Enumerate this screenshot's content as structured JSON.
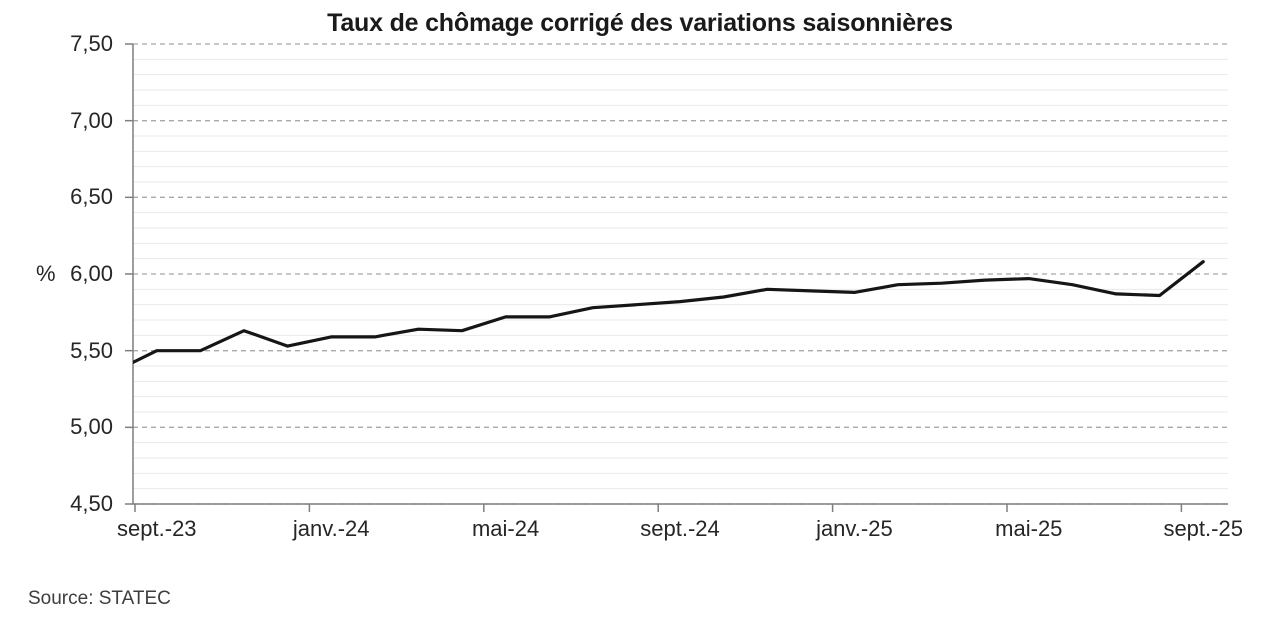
{
  "title": "Taux de chômage corrigé des variations saisonnières",
  "source": "Source: STATEC",
  "chart_data": {
    "type": "line",
    "title": "Taux de chômage corrigé des variations saisonnières",
    "xlabel": "",
    "ylabel": "%",
    "x": [
      "sept.-23",
      "oct.-23",
      "nov.-23",
      "déc.-23",
      "janv.-24",
      "févr.-24",
      "mars-24",
      "avr.-24",
      "mai-24",
      "juin-24",
      "juil.-24",
      "août-24",
      "sept.-24",
      "oct.-24",
      "nov.-24",
      "déc.-24",
      "janv.-25",
      "févr.-25",
      "mars-25",
      "avr.-25",
      "mai-25",
      "juin-25",
      "juil.-25",
      "août-25",
      "sept.-25"
    ],
    "values": [
      5.5,
      5.5,
      5.63,
      5.53,
      5.59,
      5.59,
      5.64,
      5.63,
      5.72,
      5.72,
      5.78,
      5.8,
      5.82,
      5.85,
      5.9,
      5.89,
      5.88,
      5.93,
      5.94,
      5.96,
      5.97,
      5.93,
      5.87,
      5.86,
      6.08
    ],
    "clipped_lead_in": {
      "label": "août-23",
      "value": 5.36
    },
    "x_tick_labels": [
      "sept.-23",
      "janv.-24",
      "mai-24",
      "sept.-24",
      "janv.-25",
      "mai-25",
      "sept.-25"
    ],
    "x_tick_every_n_months": 4,
    "y_tick_labels": [
      "7,50",
      "7,00",
      "6,50",
      "6,00",
      "5,50",
      "5,00",
      "4,50"
    ],
    "y_ticks": [
      7.5,
      7.0,
      6.5,
      6.0,
      5.5,
      5.0,
      4.5
    ],
    "ylim": [
      4.5,
      7.5
    ],
    "y_major_unit": 0.5,
    "y_minor_unit": 0.1,
    "grid": {
      "major": "dashed",
      "minor": "solid"
    },
    "legend": "none",
    "line_color": "#161616",
    "major_grid_color": "#a8a8a8",
    "minor_grid_color": "#e9e9e9",
    "axis_color": "#7f7f7f",
    "text_color": "#262626"
  }
}
